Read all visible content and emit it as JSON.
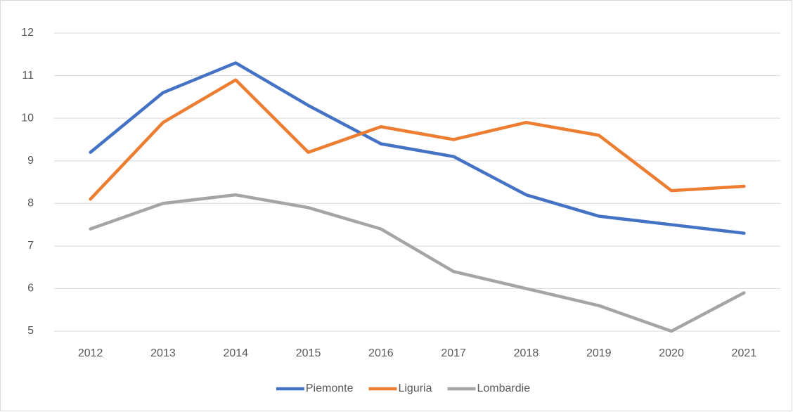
{
  "chart_data": {
    "type": "line",
    "categories": [
      "2012",
      "2013",
      "2014",
      "2015",
      "2016",
      "2017",
      "2018",
      "2019",
      "2020",
      "2021"
    ],
    "series": [
      {
        "name": "Piemonte",
        "color": "#4472c4",
        "values": [
          9.2,
          10.6,
          11.3,
          10.3,
          9.4,
          9.1,
          8.2,
          7.7,
          7.5,
          7.3
        ]
      },
      {
        "name": "Liguria",
        "color": "#ed7d31",
        "values": [
          8.1,
          9.9,
          10.9,
          9.2,
          9.8,
          9.5,
          9.9,
          9.6,
          8.3,
          8.4
        ]
      },
      {
        "name": "Lombardie",
        "color": "#a5a5a5",
        "values": [
          7.4,
          8.0,
          8.2,
          7.9,
          7.4,
          6.4,
          6.0,
          5.6,
          5.0,
          5.9
        ]
      }
    ],
    "ylim": [
      5,
      12
    ],
    "yticks": [
      5,
      6,
      7,
      8,
      9,
      10,
      11,
      12
    ],
    "grid": true,
    "legend": "bottom"
  }
}
